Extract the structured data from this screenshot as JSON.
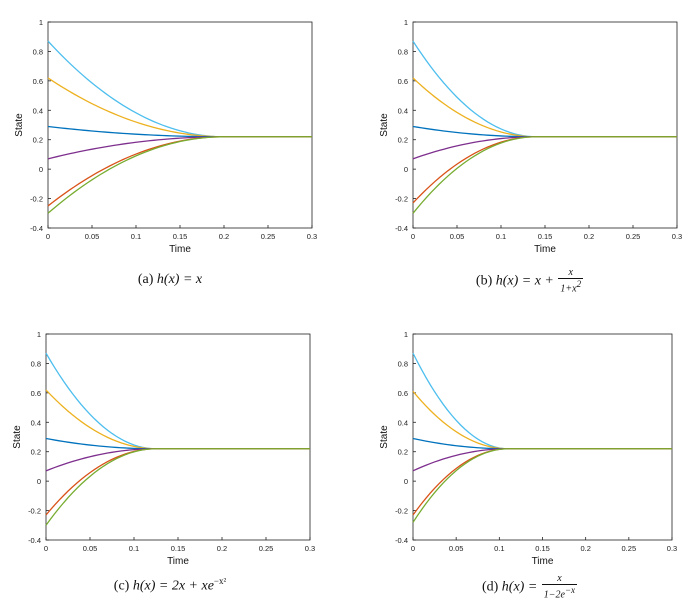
{
  "chart_data": [
    {
      "type": "line",
      "xlabel": "Time",
      "ylabel": "State",
      "xlim": [
        0,
        0.3
      ],
      "ylim": [
        -0.4,
        1
      ],
      "xticks": [
        "0",
        "0.05",
        "0.1",
        "0.15",
        "0.2",
        "0.25",
        "0.3"
      ],
      "yticks": [
        "-0.4",
        "-0.2",
        "0",
        "0.2",
        "0.4",
        "0.6",
        "0.8",
        "1"
      ],
      "settle_time": 0.2,
      "steady_state": 0.22,
      "series": [
        {
          "color": "#4DBEEE",
          "initial": 0.87,
          "final": 0.22
        },
        {
          "color": "#EDB120",
          "initial": 0.62,
          "final": 0.22
        },
        {
          "color": "#0072BD",
          "initial": 0.29,
          "final": 0.22
        },
        {
          "color": "#7E2F8E",
          "initial": 0.07,
          "final": 0.22
        },
        {
          "color": "#D95319",
          "initial": -0.25,
          "final": 0.22
        },
        {
          "color": "#77AC30",
          "initial": -0.3,
          "final": 0.22
        }
      ],
      "caption": {
        "label": "(a)",
        "func": "h(x) = x"
      }
    },
    {
      "type": "line",
      "xlabel": "Time",
      "ylabel": "State",
      "xlim": [
        0,
        0.3
      ],
      "ylim": [
        -0.4,
        1
      ],
      "xticks": [
        "0",
        "0.05",
        "0.1",
        "0.15",
        "0.2",
        "0.25",
        "0.3"
      ],
      "yticks": [
        "-0.4",
        "-0.2",
        "0",
        "0.2",
        "0.4",
        "0.6",
        "0.8",
        "1"
      ],
      "settle_time": 0.14,
      "steady_state": 0.22,
      "series": [
        {
          "color": "#4DBEEE",
          "initial": 0.87,
          "final": 0.22
        },
        {
          "color": "#EDB120",
          "initial": 0.62,
          "final": 0.22
        },
        {
          "color": "#0072BD",
          "initial": 0.29,
          "final": 0.22
        },
        {
          "color": "#7E2F8E",
          "initial": 0.07,
          "final": 0.22
        },
        {
          "color": "#D95319",
          "initial": -0.23,
          "final": 0.22
        },
        {
          "color": "#77AC30",
          "initial": -0.3,
          "final": 0.22
        }
      ],
      "caption": {
        "label": "(b)",
        "func_prefix": "h(x) = x +",
        "frac_num": "x",
        "frac_den": "1+x",
        "frac_den_sup": "2"
      }
    },
    {
      "type": "line",
      "xlabel": "Time",
      "ylabel": "State",
      "xlim": [
        0,
        0.3
      ],
      "ylim": [
        -0.4,
        1
      ],
      "xticks": [
        "0",
        "0.05",
        "0.1",
        "0.15",
        "0.2",
        "0.25",
        "0.3"
      ],
      "yticks": [
        "-0.4",
        "-0.2",
        "0",
        "0.2",
        "0.4",
        "0.6",
        "0.8",
        "1"
      ],
      "settle_time": 0.125,
      "steady_state": 0.22,
      "series": [
        {
          "color": "#4DBEEE",
          "initial": 0.87,
          "final": 0.22
        },
        {
          "color": "#EDB120",
          "initial": 0.62,
          "final": 0.22
        },
        {
          "color": "#0072BD",
          "initial": 0.29,
          "final": 0.22
        },
        {
          "color": "#7E2F8E",
          "initial": 0.07,
          "final": 0.22
        },
        {
          "color": "#D95319",
          "initial": -0.23,
          "final": 0.22
        },
        {
          "color": "#77AC30",
          "initial": -0.3,
          "final": 0.22
        }
      ],
      "caption": {
        "label": "(c)",
        "func_prefix": "h(x) = 2x + xe",
        "func_sup": "−x²"
      }
    },
    {
      "type": "line",
      "xlabel": "Time",
      "ylabel": "State",
      "xlim": [
        0,
        0.3
      ],
      "ylim": [
        -0.4,
        1
      ],
      "xticks": [
        "0",
        "0.05",
        "0.1",
        "0.15",
        "0.2",
        "0.25",
        "0.3"
      ],
      "yticks": [
        "-0.4",
        "-0.2",
        "0",
        "0.2",
        "0.4",
        "0.6",
        "0.8",
        "1"
      ],
      "settle_time": 0.11,
      "steady_state": 0.22,
      "series": [
        {
          "color": "#4DBEEE",
          "initial": 0.87,
          "final": 0.22
        },
        {
          "color": "#EDB120",
          "initial": 0.61,
          "final": 0.22
        },
        {
          "color": "#0072BD",
          "initial": 0.29,
          "final": 0.22
        },
        {
          "color": "#7E2F8E",
          "initial": 0.07,
          "final": 0.22
        },
        {
          "color": "#D95319",
          "initial": -0.23,
          "final": 0.22
        },
        {
          "color": "#77AC30",
          "initial": -0.28,
          "final": 0.22
        }
      ],
      "caption": {
        "label": "(d)",
        "func_prefix": "h(x) =",
        "frac_num": "x",
        "frac_den": "1−2e",
        "frac_den_sup": "−x"
      }
    }
  ]
}
